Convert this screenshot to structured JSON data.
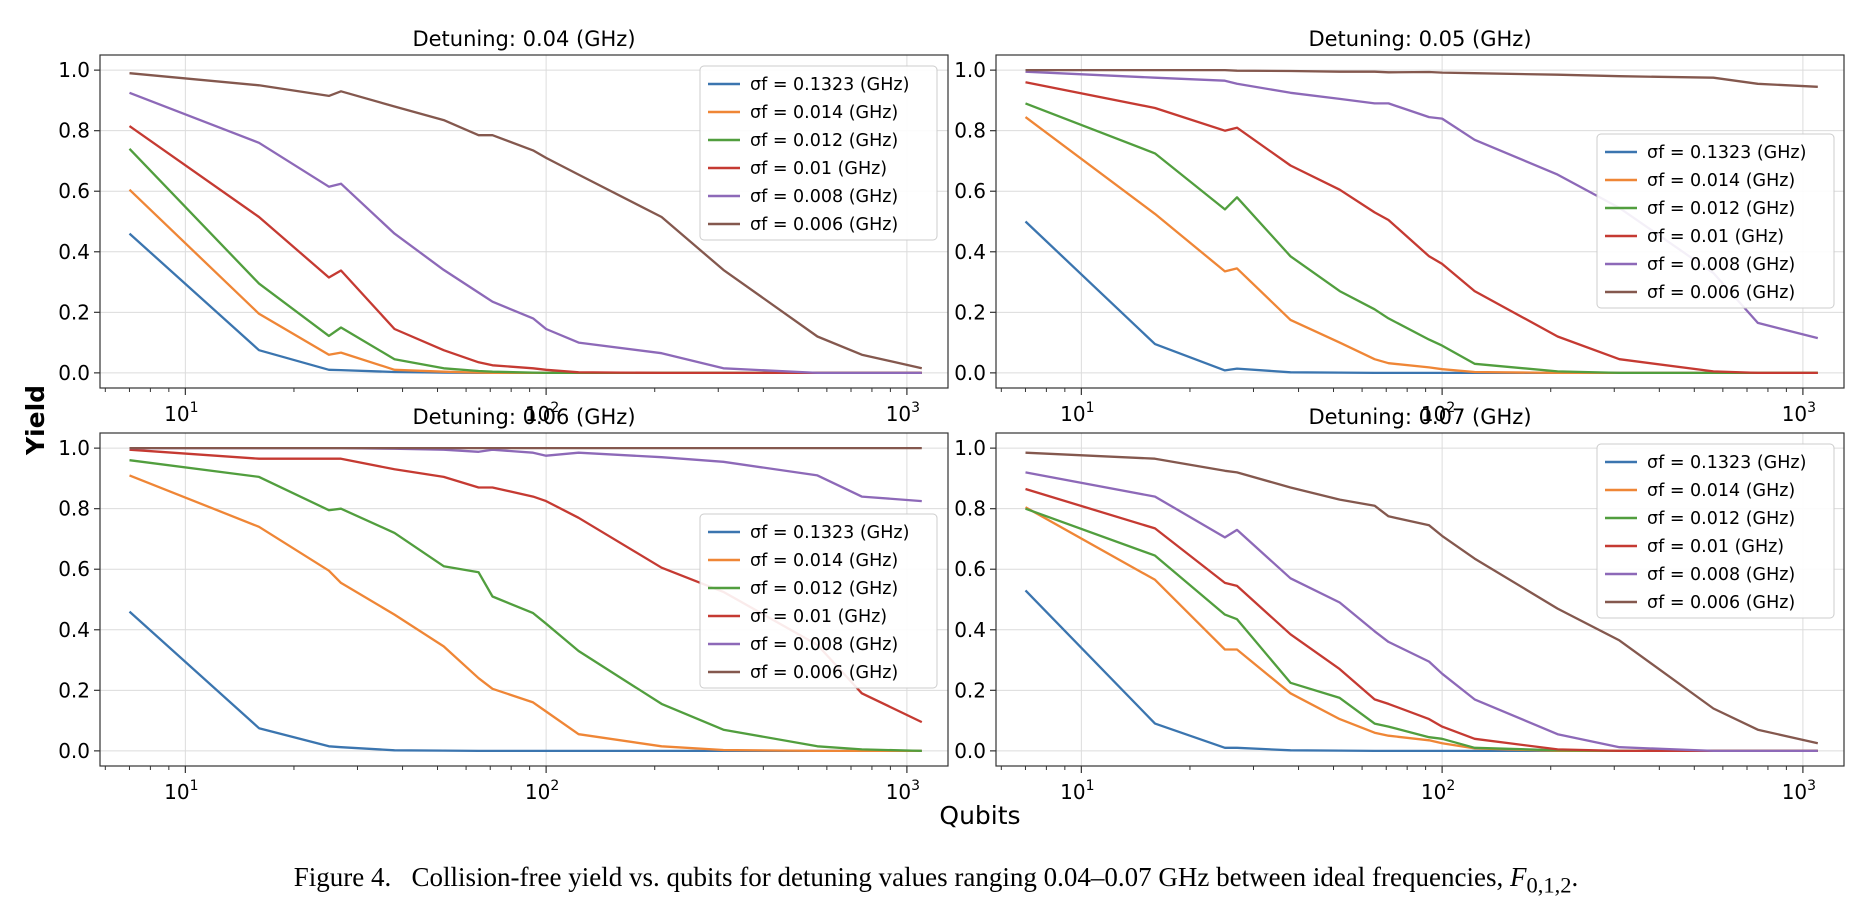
{
  "figure": {
    "ylabel": "Yield",
    "xlabel": "Qubits",
    "caption": {
      "label": "Figure 4.",
      "text": "Collision-free yield vs. qubits for detuning values ranging 0.04–0.07 GHz between ideal frequencies, ",
      "symbol": "F",
      "subscript": "0,1,2",
      "end": "."
    }
  },
  "colors": [
    "#3b75af",
    "#ef8636",
    "#519e3e",
    "#c53a32",
    "#8d69b8",
    "#84584e"
  ],
  "chart_data": [
    {
      "type": "line",
      "title": "Detuning: 0.04 (GHz)",
      "xscale": "log",
      "xlim": [
        5.8,
        1300
      ],
      "ylim": [
        -0.05,
        1.05
      ],
      "xticks": [
        {
          "value": 10,
          "label": "10",
          "exp": "1"
        },
        {
          "value": 100,
          "label": "10",
          "exp": "2"
        },
        {
          "value": 1000,
          "label": "10",
          "exp": "3"
        }
      ],
      "yticks": [
        0.0,
        0.2,
        0.4,
        0.6,
        0.8,
        1.0
      ],
      "yticklabels": [
        "0.0",
        "0.2",
        "0.4",
        "0.6",
        "0.8",
        "1.0"
      ],
      "grid": true,
      "legend": "top-right",
      "x": [
        7,
        16,
        25,
        27,
        38,
        52,
        65,
        71,
        92,
        100,
        123,
        209,
        310,
        565,
        750,
        1100
      ],
      "series": [
        {
          "name": "σf = 0.1323 (GHz)",
          "values": [
            0.46,
            0.075,
            0.01,
            0.009,
            0.003,
            0.001,
            0.0,
            0.0,
            0.0,
            0.0,
            0.0,
            0.0,
            0.0,
            0.0,
            0.0,
            0.0
          ]
        },
        {
          "name": "σf = 0.014 (GHz)",
          "values": [
            0.605,
            0.195,
            0.06,
            0.067,
            0.01,
            0.004,
            0.001,
            0.0,
            0.0,
            0.0,
            0.0,
            0.0,
            0.0,
            0.0,
            0.0,
            0.0
          ]
        },
        {
          "name": "σf = 0.012 (GHz)",
          "values": [
            0.74,
            0.295,
            0.122,
            0.15,
            0.045,
            0.015,
            0.006,
            0.004,
            0.001,
            0.0,
            0.0,
            0.0,
            0.0,
            0.0,
            0.0,
            0.0
          ]
        },
        {
          "name": "σf = 0.01 (GHz)",
          "values": [
            0.815,
            0.515,
            0.315,
            0.338,
            0.145,
            0.075,
            0.035,
            0.025,
            0.015,
            0.01,
            0.002,
            0.0,
            0.0,
            0.0,
            0.0,
            0.0
          ]
        },
        {
          "name": "σf = 0.008 (GHz)",
          "values": [
            0.925,
            0.76,
            0.615,
            0.625,
            0.46,
            0.34,
            0.265,
            0.235,
            0.18,
            0.145,
            0.1,
            0.065,
            0.015,
            0.0,
            0.0,
            0.0
          ]
        },
        {
          "name": "σf = 0.006 (GHz)",
          "values": [
            0.99,
            0.95,
            0.915,
            0.93,
            0.88,
            0.835,
            0.785,
            0.785,
            0.735,
            0.71,
            0.655,
            0.515,
            0.34,
            0.12,
            0.06,
            0.015
          ]
        }
      ]
    },
    {
      "type": "line",
      "title": "Detuning: 0.05 (GHz)",
      "xscale": "log",
      "xlim": [
        5.8,
        1300
      ],
      "ylim": [
        -0.05,
        1.05
      ],
      "xticks": [
        {
          "value": 10,
          "label": "10",
          "exp": "1"
        },
        {
          "value": 100,
          "label": "10",
          "exp": "2"
        },
        {
          "value": 1000,
          "label": "10",
          "exp": "3"
        }
      ],
      "yticks": [
        0.0,
        0.2,
        0.4,
        0.6,
        0.8,
        1.0
      ],
      "yticklabels": [
        "0.0",
        "0.2",
        "0.4",
        "0.6",
        "0.8",
        "1.0"
      ],
      "grid": true,
      "legend": "center-right",
      "x": [
        7,
        16,
        25,
        27,
        38,
        52,
        65,
        71,
        92,
        100,
        123,
        209,
        310,
        565,
        750,
        1100
      ],
      "series": [
        {
          "name": "σf = 0.1323 (GHz)",
          "values": [
            0.5,
            0.095,
            0.008,
            0.014,
            0.002,
            0.001,
            0.0,
            0.0,
            0.0,
            0.0,
            0.0,
            0.0,
            0.0,
            0.0,
            0.0,
            0.0
          ]
        },
        {
          "name": "σf = 0.014 (GHz)",
          "values": [
            0.845,
            0.525,
            0.335,
            0.345,
            0.175,
            0.1,
            0.045,
            0.032,
            0.018,
            0.012,
            0.003,
            0.0,
            0.0,
            0.0,
            0.0,
            0.0
          ]
        },
        {
          "name": "σf = 0.012 (GHz)",
          "values": [
            0.89,
            0.725,
            0.54,
            0.58,
            0.385,
            0.27,
            0.21,
            0.18,
            0.11,
            0.09,
            0.03,
            0.005,
            0.0,
            0.0,
            0.0,
            0.0
          ]
        },
        {
          "name": "σf = 0.01 (GHz)",
          "values": [
            0.96,
            0.875,
            0.8,
            0.81,
            0.685,
            0.605,
            0.53,
            0.505,
            0.385,
            0.36,
            0.27,
            0.12,
            0.045,
            0.005,
            0.0,
            0.0
          ]
        },
        {
          "name": "σf = 0.008 (GHz)",
          "values": [
            0.995,
            0.975,
            0.965,
            0.955,
            0.925,
            0.905,
            0.89,
            0.89,
            0.845,
            0.84,
            0.77,
            0.655,
            0.545,
            0.33,
            0.165,
            0.115
          ]
        },
        {
          "name": "σf = 0.006 (GHz)",
          "values": [
            1.0,
            1.0,
            1.0,
            0.998,
            0.997,
            0.995,
            0.995,
            0.993,
            0.994,
            0.992,
            0.99,
            0.985,
            0.98,
            0.975,
            0.955,
            0.945
          ]
        }
      ]
    },
    {
      "type": "line",
      "title": "Detuning: 0.06 (GHz)",
      "xscale": "log",
      "xlim": [
        5.8,
        1300
      ],
      "ylim": [
        -0.05,
        1.05
      ],
      "xticks": [
        {
          "value": 10,
          "label": "10",
          "exp": "1"
        },
        {
          "value": 100,
          "label": "10",
          "exp": "2"
        },
        {
          "value": 1000,
          "label": "10",
          "exp": "3"
        }
      ],
      "yticks": [
        0.0,
        0.2,
        0.4,
        0.6,
        0.8,
        1.0
      ],
      "yticklabels": [
        "0.0",
        "0.2",
        "0.4",
        "0.6",
        "0.8",
        "1.0"
      ],
      "grid": true,
      "legend": "center-right",
      "x": [
        7,
        16,
        25,
        27,
        38,
        52,
        65,
        71,
        92,
        100,
        123,
        209,
        310,
        565,
        750,
        1100
      ],
      "series": [
        {
          "name": "σf = 0.1323 (GHz)",
          "values": [
            0.46,
            0.075,
            0.015,
            0.012,
            0.002,
            0.001,
            0.0,
            0.0,
            0.0,
            0.0,
            0.0,
            0.0,
            0.0,
            0.0,
            0.0,
            0.0
          ]
        },
        {
          "name": "σf = 0.014 (GHz)",
          "values": [
            0.91,
            0.74,
            0.595,
            0.555,
            0.45,
            0.345,
            0.24,
            0.205,
            0.16,
            0.13,
            0.055,
            0.015,
            0.003,
            0.0,
            0.0,
            0.0
          ]
        },
        {
          "name": "σf = 0.012 (GHz)",
          "values": [
            0.96,
            0.905,
            0.795,
            0.8,
            0.72,
            0.61,
            0.59,
            0.51,
            0.455,
            0.42,
            0.33,
            0.155,
            0.07,
            0.015,
            0.005,
            0.0
          ]
        },
        {
          "name": "σf = 0.01 (GHz)",
          "values": [
            0.995,
            0.965,
            0.965,
            0.965,
            0.93,
            0.905,
            0.87,
            0.87,
            0.84,
            0.825,
            0.77,
            0.605,
            0.525,
            0.35,
            0.19,
            0.095
          ]
        },
        {
          "name": "σf = 0.008 (GHz)",
          "values": [
            1.0,
            1.0,
            1.0,
            1.0,
            0.998,
            0.995,
            0.988,
            0.995,
            0.985,
            0.975,
            0.985,
            0.97,
            0.955,
            0.91,
            0.84,
            0.825
          ]
        },
        {
          "name": "σf = 0.006 (GHz)",
          "values": [
            1.0,
            1.0,
            1.0,
            1.0,
            1.0,
            1.0,
            1.0,
            1.0,
            1.0,
            1.0,
            1.0,
            1.0,
            1.0,
            1.0,
            1.0,
            1.0
          ]
        }
      ]
    },
    {
      "type": "line",
      "title": "Detuning: 0.07 (GHz)",
      "xscale": "log",
      "xlim": [
        5.8,
        1300
      ],
      "ylim": [
        -0.05,
        1.05
      ],
      "xticks": [
        {
          "value": 10,
          "label": "10",
          "exp": "1"
        },
        {
          "value": 100,
          "label": "10",
          "exp": "2"
        },
        {
          "value": 1000,
          "label": "10",
          "exp": "3"
        }
      ],
      "yticks": [
        0.0,
        0.2,
        0.4,
        0.6,
        0.8,
        1.0
      ],
      "yticklabels": [
        "0.0",
        "0.2",
        "0.4",
        "0.6",
        "0.8",
        "1.0"
      ],
      "grid": true,
      "legend": "top-right",
      "x": [
        7,
        16,
        25,
        27,
        38,
        52,
        65,
        71,
        92,
        100,
        123,
        209,
        310,
        565,
        750,
        1100
      ],
      "series": [
        {
          "name": "σf = 0.1323 (GHz)",
          "values": [
            0.53,
            0.09,
            0.01,
            0.01,
            0.002,
            0.001,
            0.0,
            0.0,
            0.0,
            0.0,
            0.0,
            0.0,
            0.0,
            0.0,
            0.0,
            0.0
          ]
        },
        {
          "name": "σf = 0.014 (GHz)",
          "values": [
            0.805,
            0.565,
            0.335,
            0.335,
            0.19,
            0.105,
            0.06,
            0.05,
            0.035,
            0.025,
            0.008,
            0.0,
            0.0,
            0.0,
            0.0,
            0.0
          ]
        },
        {
          "name": "σf = 0.012 (GHz)",
          "values": [
            0.8,
            0.645,
            0.45,
            0.435,
            0.225,
            0.175,
            0.09,
            0.08,
            0.045,
            0.04,
            0.01,
            0.002,
            0.0,
            0.0,
            0.0,
            0.0
          ]
        },
        {
          "name": "σf = 0.01 (GHz)",
          "values": [
            0.865,
            0.735,
            0.555,
            0.545,
            0.385,
            0.27,
            0.17,
            0.155,
            0.105,
            0.08,
            0.04,
            0.005,
            0.0,
            0.0,
            0.0,
            0.0
          ]
        },
        {
          "name": "σf = 0.008 (GHz)",
          "values": [
            0.92,
            0.84,
            0.705,
            0.73,
            0.57,
            0.49,
            0.395,
            0.36,
            0.295,
            0.255,
            0.17,
            0.055,
            0.012,
            0.0,
            0.0,
            0.0
          ]
        },
        {
          "name": "σf = 0.006 (GHz)",
          "values": [
            0.985,
            0.965,
            0.925,
            0.92,
            0.87,
            0.83,
            0.81,
            0.775,
            0.745,
            0.71,
            0.635,
            0.47,
            0.365,
            0.14,
            0.07,
            0.025
          ]
        }
      ]
    }
  ]
}
